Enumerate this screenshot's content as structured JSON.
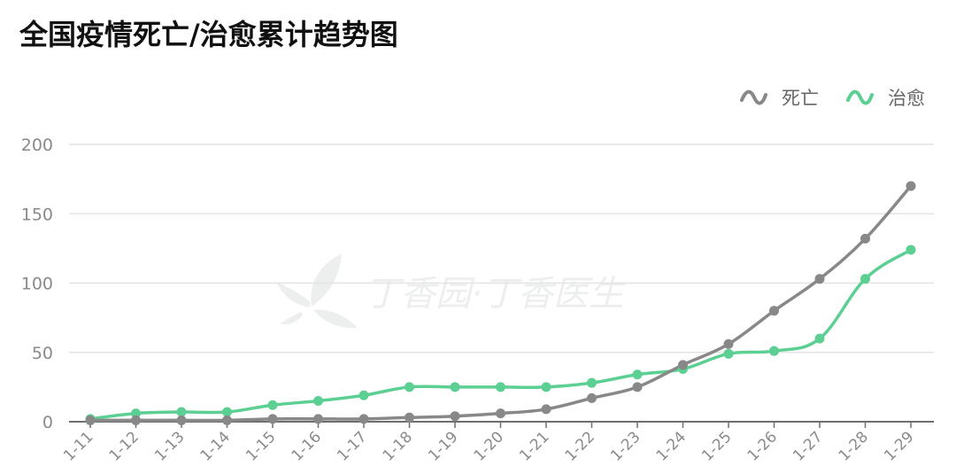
{
  "chart_data": {
    "type": "line",
    "title": "全国疫情死亡/治愈累计趋势图",
    "categories": [
      "1-11",
      "1-12",
      "1-13",
      "1-14",
      "1-15",
      "1-16",
      "1-17",
      "1-18",
      "1-19",
      "1-20",
      "1-21",
      "1-22",
      "1-23",
      "1-24",
      "1-25",
      "1-26",
      "1-27",
      "1-28",
      "1-29"
    ],
    "series": [
      {
        "name": "死亡",
        "color": "#888888",
        "values": [
          1,
          1,
          1,
          1,
          2,
          2,
          2,
          3,
          4,
          6,
          9,
          17,
          25,
          41,
          56,
          80,
          103,
          132,
          170
        ]
      },
      {
        "name": "治愈",
        "color": "#5ccf93",
        "values": [
          2,
          6,
          7,
          7,
          12,
          15,
          19,
          25,
          25,
          25,
          25,
          28,
          34,
          38,
          49,
          51,
          60,
          103,
          124
        ]
      }
    ],
    "yticks": [
      0,
      50,
      100,
      150,
      200
    ],
    "ylim": [
      0,
      200
    ],
    "grid": true,
    "legend_position": "top-right",
    "watermark": "丁香园·丁香医生"
  }
}
